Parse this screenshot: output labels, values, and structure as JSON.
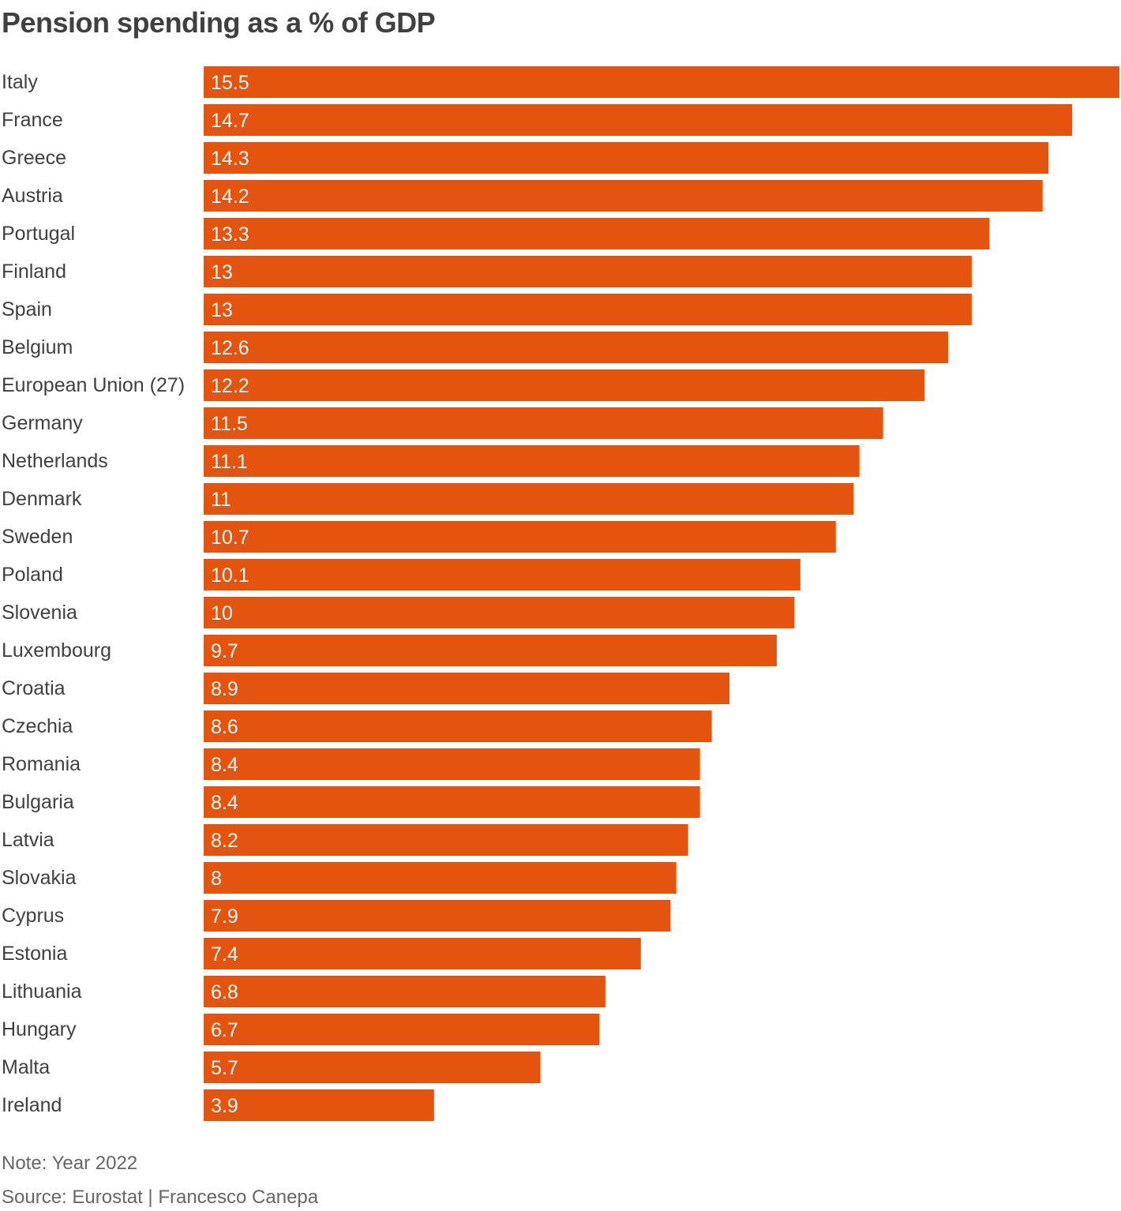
{
  "chart_data": {
    "type": "bar",
    "orientation": "horizontal",
    "title": "Pension spending as a % of GDP",
    "categories": [
      "Italy",
      "France",
      "Greece",
      "Austria",
      "Portugal",
      "Finland",
      "Spain",
      "Belgium",
      "European Union (27)",
      "Germany",
      "Netherlands",
      "Denmark",
      "Sweden",
      "Poland",
      "Slovenia",
      "Luxembourg",
      "Croatia",
      "Czechia",
      "Romania",
      "Bulgaria",
      "Latvia",
      "Slovakia",
      "Cyprus",
      "Estonia",
      "Lithuania",
      "Hungary",
      "Malta",
      "Ireland"
    ],
    "values": [
      15.5,
      14.7,
      14.3,
      14.2,
      13.3,
      13,
      13,
      12.6,
      12.2,
      11.5,
      11.1,
      11,
      10.7,
      10.1,
      10,
      9.7,
      8.9,
      8.6,
      8.4,
      8.4,
      8.2,
      8,
      7.9,
      7.4,
      6.8,
      6.7,
      5.7,
      3.9
    ],
    "value_labels": [
      "15.5",
      "14.7",
      "14.3",
      "14.2",
      "13.3",
      "13",
      "13",
      "12.6",
      "12.2",
      "11.5",
      "11.1",
      "11",
      "10.7",
      "10.1",
      "10",
      "9.7",
      "8.9",
      "8.6",
      "8.4",
      "8.4",
      "8.2",
      "8",
      "7.9",
      "7.4",
      "6.8",
      "6.7",
      "5.7",
      "3.9"
    ],
    "xlim": [
      0,
      15.5
    ],
    "grid": false,
    "legend": "none",
    "bar_color": "#e4540e",
    "label_color": "#404040",
    "value_label_color": "#ffffff"
  },
  "footer": {
    "note": "Note: Year 2022",
    "source": "Source: Eurostat | Francesco Canepa"
  }
}
